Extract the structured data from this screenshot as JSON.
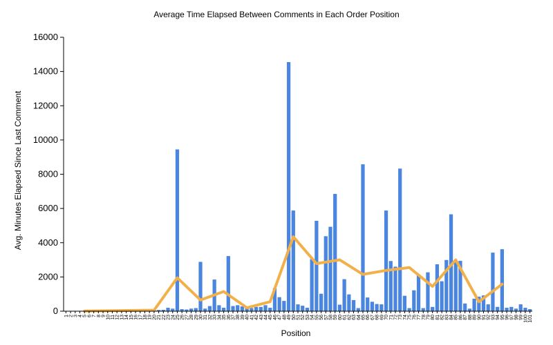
{
  "chart_data": {
    "type": "bar",
    "title": "Average Time Elapsed Between Comments in Each Order Position",
    "xlabel": "Position",
    "ylabel": "Avg. Minutes Elapsed Since Last Comment",
    "ylim": [
      0,
      16000
    ],
    "yticks": [
      "0",
      "2000",
      "4000",
      "6000",
      "8000",
      "10000",
      "12000",
      "14000",
      "16000"
    ],
    "grid": false,
    "legend": "none",
    "categories": [
      "1",
      "2",
      "3",
      "4",
      "5",
      "6",
      "7",
      "8",
      "9",
      "10",
      "11",
      "12",
      "13",
      "14",
      "15",
      "16",
      "17",
      "18",
      "19",
      "20",
      "21",
      "22",
      "23",
      "24",
      "25",
      "26",
      "27",
      "28",
      "29",
      "30",
      "31",
      "32",
      "33",
      "34",
      "35",
      "36",
      "37",
      "38",
      "39",
      "40",
      "41",
      "42",
      "43",
      "44",
      "45",
      "46",
      "47",
      "48",
      "49",
      "50",
      "51",
      "52",
      "53",
      "54",
      "55",
      "56",
      "57",
      "58",
      "59",
      "60",
      "61",
      "62",
      "63",
      "64",
      "65",
      "66",
      "67",
      "68",
      "69",
      "70",
      "71",
      "72",
      "73",
      "74",
      "75",
      "76",
      "77",
      "78",
      "79",
      "80",
      "81",
      "82",
      "83",
      "84",
      "85",
      "86",
      "87",
      "88",
      "89",
      "90",
      "91",
      "92",
      "93",
      "94",
      "95",
      "96",
      "97",
      "98",
      "99",
      "100",
      "101"
    ],
    "series": [
      {
        "type": "bar",
        "color": "#4a86e0",
        "values": [
          3,
          5,
          8,
          10,
          15,
          20,
          20,
          25,
          25,
          30,
          30,
          35,
          40,
          40,
          50,
          50,
          55,
          60,
          60,
          65,
          70,
          80,
          200,
          150,
          9450,
          120,
          100,
          150,
          180,
          2880,
          150,
          300,
          1850,
          350,
          200,
          3220,
          300,
          350,
          280,
          250,
          180,
          250,
          250,
          350,
          200,
          1350,
          820,
          600,
          14550,
          5880,
          400,
          320,
          200,
          3040,
          5280,
          1020,
          4380,
          4930,
          6850,
          380,
          1870,
          980,
          650,
          180,
          8580,
          800,
          550,
          420,
          400,
          5880,
          2930,
          2600,
          8330,
          900,
          180,
          1220,
          2130,
          180,
          2270,
          250,
          2740,
          1750,
          2990,
          5660,
          2980,
          2940,
          450,
          150,
          730,
          850,
          920,
          400,
          3420,
          250,
          3620,
          200,
          250,
          150,
          400,
          200,
          120
        ]
      },
      {
        "type": "line",
        "color": "#f2b04a",
        "x": [
          5,
          20,
          25,
          30,
          35,
          40,
          45,
          50,
          55,
          60,
          65,
          70,
          75,
          80,
          85,
          90,
          95
        ],
        "values": [
          10,
          60,
          1950,
          650,
          1150,
          200,
          550,
          4350,
          2780,
          3000,
          2150,
          2380,
          2550,
          1450,
          3000,
          550,
          1580
        ]
      }
    ]
  }
}
